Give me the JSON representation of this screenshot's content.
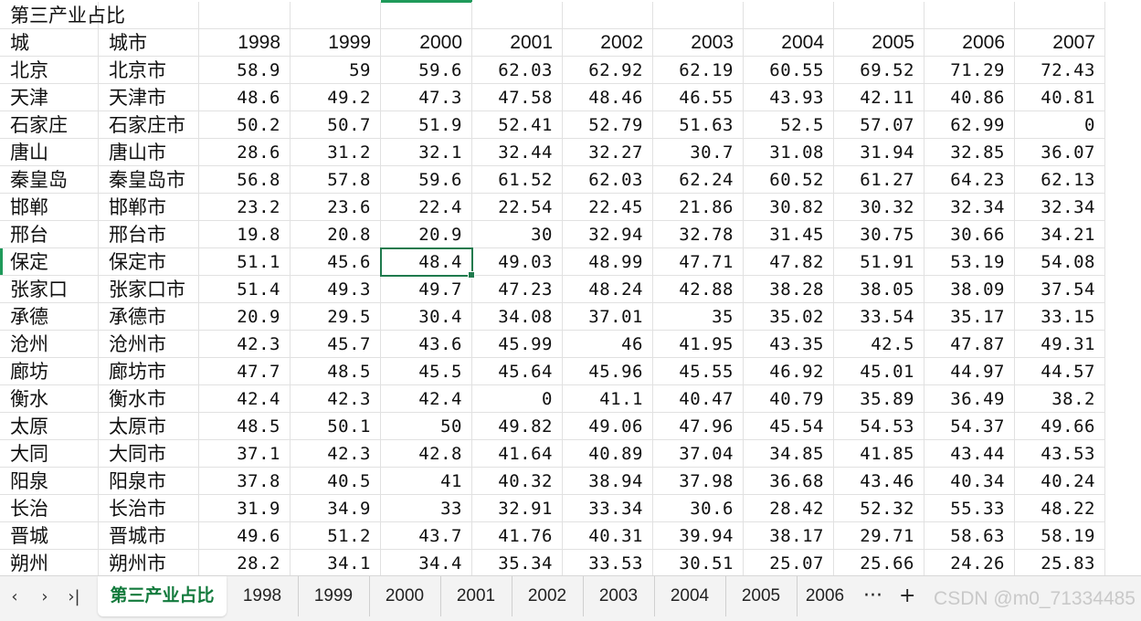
{
  "sheet": {
    "title_cell": "第三产业占比",
    "headers": [
      "城",
      "城市",
      "1998",
      "1999",
      "2000",
      "2001",
      "2002",
      "2003",
      "2004",
      "2005",
      "2006",
      "2007"
    ],
    "rows": [
      [
        "北京",
        "北京市",
        "58.9",
        "59",
        "59.6",
        "62.03",
        "62.92",
        "62.19",
        "60.55",
        "69.52",
        "71.29",
        "72.43"
      ],
      [
        "天津",
        "天津市",
        "48.6",
        "49.2",
        "47.3",
        "47.58",
        "48.46",
        "46.55",
        "43.93",
        "42.11",
        "40.86",
        "40.81"
      ],
      [
        "石家庄",
        "石家庄市",
        "50.2",
        "50.7",
        "51.9",
        "52.41",
        "52.79",
        "51.63",
        "52.5",
        "57.07",
        "62.99",
        "0"
      ],
      [
        "唐山",
        "唐山市",
        "28.6",
        "31.2",
        "32.1",
        "32.44",
        "32.27",
        "30.7",
        "31.08",
        "31.94",
        "32.85",
        "36.07"
      ],
      [
        "秦皇岛",
        "秦皇岛市",
        "56.8",
        "57.8",
        "59.6",
        "61.52",
        "62.03",
        "62.24",
        "60.52",
        "61.27",
        "64.23",
        "62.13"
      ],
      [
        "邯郸",
        "邯郸市",
        "23.2",
        "23.6",
        "22.4",
        "22.54",
        "22.45",
        "21.86",
        "30.82",
        "30.32",
        "32.34",
        "32.34"
      ],
      [
        "邢台",
        "邢台市",
        "19.8",
        "20.8",
        "20.9",
        "30",
        "32.94",
        "32.78",
        "31.45",
        "30.75",
        "30.66",
        "34.21"
      ],
      [
        "保定",
        "保定市",
        "51.1",
        "45.6",
        "48.4",
        "49.03",
        "48.99",
        "47.71",
        "47.82",
        "51.91",
        "53.19",
        "54.08"
      ],
      [
        "张家口",
        "张家口市",
        "51.4",
        "49.3",
        "49.7",
        "47.23",
        "48.24",
        "42.88",
        "38.28",
        "38.05",
        "38.09",
        "37.54"
      ],
      [
        "承德",
        "承德市",
        "20.9",
        "29.5",
        "30.4",
        "34.08",
        "37.01",
        "35",
        "35.02",
        "33.54",
        "35.17",
        "33.15"
      ],
      [
        "沧州",
        "沧州市",
        "42.3",
        "45.7",
        "43.6",
        "45.99",
        "46",
        "41.95",
        "43.35",
        "42.5",
        "47.87",
        "49.31"
      ],
      [
        "廊坊",
        "廊坊市",
        "47.7",
        "48.5",
        "45.5",
        "45.64",
        "45.96",
        "45.55",
        "46.92",
        "45.01",
        "44.97",
        "44.57"
      ],
      [
        "衡水",
        "衡水市",
        "42.4",
        "42.3",
        "42.4",
        "0",
        "41.1",
        "40.47",
        "40.79",
        "35.89",
        "36.49",
        "38.2"
      ],
      [
        "太原",
        "太原市",
        "48.5",
        "50.1",
        "50",
        "49.82",
        "49.06",
        "47.96",
        "45.54",
        "54.53",
        "54.37",
        "49.66"
      ],
      [
        "大同",
        "大同市",
        "37.1",
        "42.3",
        "42.8",
        "41.64",
        "40.89",
        "37.04",
        "34.85",
        "41.85",
        "43.44",
        "43.53"
      ],
      [
        "阳泉",
        "阳泉市",
        "37.8",
        "40.5",
        "41",
        "40.32",
        "38.94",
        "37.98",
        "36.68",
        "43.46",
        "40.34",
        "40.24"
      ],
      [
        "长治",
        "长治市",
        "31.9",
        "34.9",
        "33",
        "32.91",
        "33.34",
        "30.6",
        "28.42",
        "52.32",
        "55.33",
        "48.22"
      ],
      [
        "晋城",
        "晋城市",
        "49.6",
        "51.2",
        "43.7",
        "41.76",
        "40.31",
        "39.94",
        "38.17",
        "29.71",
        "58.63",
        "58.19"
      ],
      [
        "朔州",
        "朔州市",
        "28.2",
        "34.1",
        "34.4",
        "35.34",
        "33.53",
        "30.51",
        "25.07",
        "25.66",
        "24.26",
        "25.83"
      ]
    ]
  },
  "tabs": {
    "nav": [
      "‹",
      "›",
      "›|"
    ],
    "sheets": [
      "第三产业占比",
      "1998",
      "1999",
      "2000",
      "2001",
      "2002",
      "2003",
      "2004",
      "2005",
      "2006"
    ],
    "active": "第三产业占比",
    "more": "···",
    "add": "+"
  },
  "watermark": "CSDN @m0_71334485",
  "colors": {
    "accent": "#1f7a4d",
    "active_tab_text": "#127a3c"
  }
}
